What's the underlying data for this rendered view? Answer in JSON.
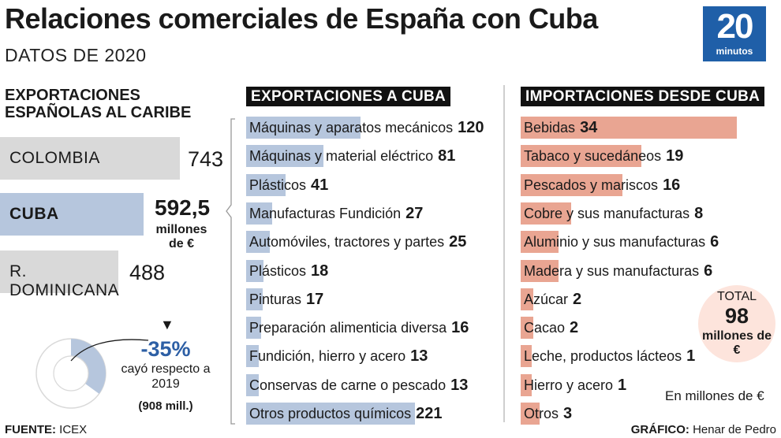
{
  "header": {
    "title": "Relaciones comerciales de España con Cuba",
    "subtitle": "DATOS DE 2020",
    "logo_number": "20",
    "logo_word": "minutos",
    "brand_color": "#1f5fa8"
  },
  "colors": {
    "export_bar": "#b6c6dd",
    "cuba_bar": "#b6c6dd",
    "other_country_bar": "#d9d9d9",
    "import_bar": "#e9a592",
    "drop_text": "#2d5fa5",
    "total_circle": "#fde4dc"
  },
  "left_panel": {
    "heading": "EXPORTACIONES ESPAÑOLAS AL CARIBE",
    "units": "millones de €",
    "drop_pct": "-35%",
    "drop_text": "cayó respecto a 2019",
    "drop_prev": "(908 mill.)"
  },
  "center_panel": {
    "heading": "EXPORTACIONES A CUBA"
  },
  "right_panel": {
    "heading": "IMPORTACIONES DESDE CUBA",
    "total_label": "TOTAL",
    "total_value": "98",
    "total_units": "millones de €",
    "units_note": "En millones de €"
  },
  "footer": {
    "source_label": "FUENTE:",
    "source_value": "ICEX",
    "credit_label": "GRÁFICO:",
    "credit_value": "Henar de Pedro"
  },
  "chart_data": [
    {
      "type": "bar",
      "orientation": "horizontal",
      "title": "EXPORTACIONES ESPAÑOLAS AL CARIBE",
      "units": "millones de €",
      "categories": [
        "COLOMBIA",
        "CUBA",
        "R. DOMINICANA"
      ],
      "values": [
        743,
        592.5,
        488
      ],
      "value_labels": [
        "743",
        "592,5",
        "488"
      ]
    },
    {
      "type": "pie",
      "subtype": "donut",
      "annotation": "-35% cayó respecto a 2019 (908 mill.)",
      "values": [
        35,
        65
      ]
    },
    {
      "type": "bar",
      "orientation": "horizontal",
      "title": "EXPORTACIONES A CUBA",
      "units": "millones de €",
      "categories": [
        "Máquinas y aparatos mecánicos",
        "Máquinas y material eléctrico",
        "Plásticos",
        "Manufacturas Fundición",
        "Automóviles, tractores y partes",
        "Plásticos",
        "Pinturas",
        "Preparación alimenticia diversa",
        "Fundición, hierro y acero",
        "Conservas de carne o pescado",
        "Otros productos químicos"
      ],
      "values": [
        120,
        81,
        41,
        27,
        25,
        18,
        17,
        16,
        13,
        13,
        221
      ]
    },
    {
      "type": "bar",
      "orientation": "horizontal",
      "title": "IMPORTACIONES DESDE CUBA",
      "units": "millones de €",
      "total": 98,
      "categories": [
        "Bebidas",
        "Tabaco y sucedáneos",
        "Pescados y mariscos",
        "Cobre y sus manufacturas",
        "Aluminio y sus manufacturas",
        "Madera y sus manufacturas",
        "Azúcar",
        "Cacao",
        "Leche, productos lácteos",
        "Hierro y acero",
        "Otros"
      ],
      "values": [
        34,
        19,
        16,
        8,
        6,
        6,
        2,
        2,
        1,
        1,
        3
      ]
    }
  ]
}
